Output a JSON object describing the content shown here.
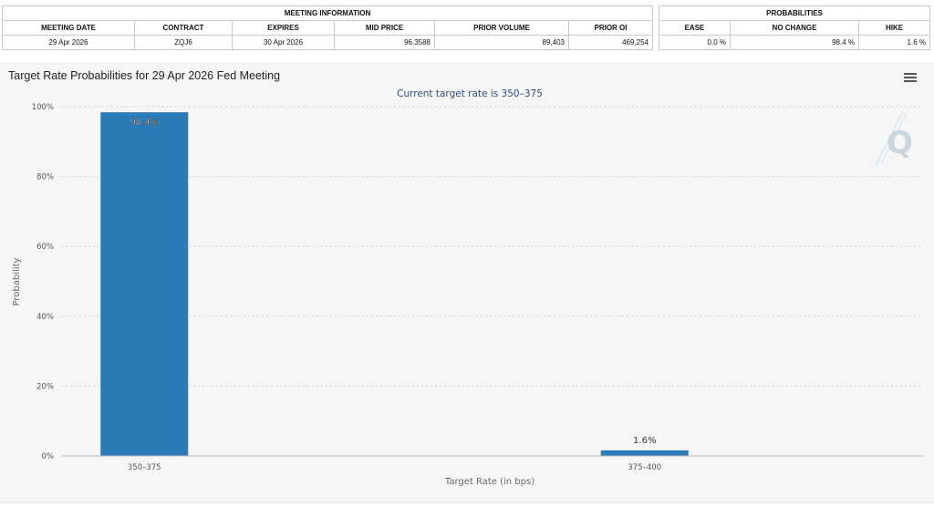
{
  "meeting_info": {
    "header": "MEETING INFORMATION",
    "columns": [
      "MEETING DATE",
      "CONTRACT",
      "EXPIRES",
      "MID PRICE",
      "PRIOR VOLUME",
      "PRIOR OI"
    ],
    "row": [
      "29 Apr 2026",
      "ZQJ6",
      "30 Apr 2026",
      "96.3588",
      "89,403",
      "469,254"
    ]
  },
  "probabilities": {
    "header": "PROBABILITIES",
    "columns": [
      "EASE",
      "NO CHANGE",
      "HIKE"
    ],
    "row": [
      "0.0 %",
      "98.4 %",
      "1.6 %"
    ]
  },
  "chart_title": "Target Rate Probabilities for 29 Apr 2026 Fed Meeting",
  "colors": {
    "bar": "#2b7bb9",
    "grid": "#cfcfcf",
    "background": "#f6f6f6"
  },
  "icons": {
    "menu": "hamburger-menu-icon",
    "watermark": "q-logo"
  },
  "chart_data": {
    "type": "bar",
    "subtitle": "Current target rate is 350–375",
    "categories": [
      "350–375",
      "375–400"
    ],
    "values": [
      98.4,
      1.6
    ],
    "data_labels": [
      "98.4%",
      "1.6%"
    ],
    "xlabel": "Target Rate (in bps)",
    "ylabel": "Probability",
    "ylim": [
      0,
      100
    ],
    "yticks": [
      0,
      20,
      40,
      60,
      80,
      100
    ],
    "ytick_labels": [
      "0%",
      "20%",
      "40%",
      "60%",
      "80%",
      "100%"
    ],
    "grid": true,
    "legend": "none"
  }
}
